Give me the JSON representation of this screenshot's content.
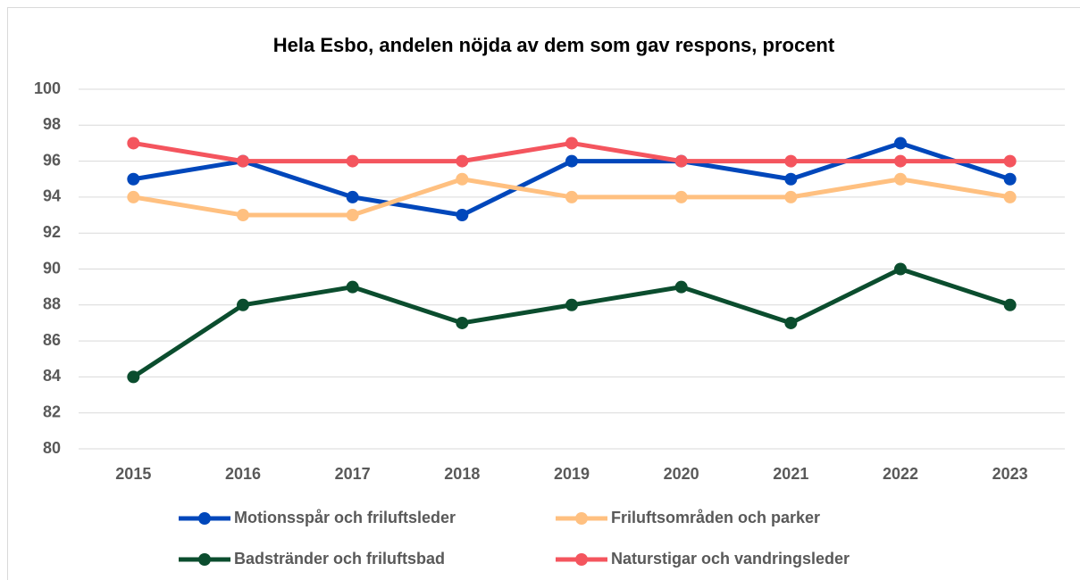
{
  "chart_data": {
    "type": "line",
    "title": "Hela Esbo, andelen nöjda av dem som gav respons, procent",
    "categories": [
      "2015",
      "2016",
      "2017",
      "2018",
      "2019",
      "2020",
      "2021",
      "2022",
      "2023"
    ],
    "series": [
      {
        "name": "Motionsspår och friluftsleder",
        "color": "#0047bb",
        "values": [
          95,
          96,
          94,
          93,
          96,
          96,
          95,
          97,
          95
        ]
      },
      {
        "name": "Friluftsområden och parker",
        "color": "#ffc080",
        "values": [
          94,
          93,
          93,
          95,
          94,
          94,
          94,
          95,
          94
        ]
      },
      {
        "name": "Badstränder och friluftsbad",
        "color": "#0b4d2e",
        "values": [
          84,
          88,
          89,
          87,
          88,
          89,
          87,
          90,
          88
        ]
      },
      {
        "name": "Naturstigar och vandringsleder",
        "color": "#f4555e",
        "values": [
          97,
          96,
          96,
          96,
          97,
          96,
          96,
          96,
          96
        ]
      }
    ],
    "ylim": [
      80,
      100
    ],
    "yticks": [
      80,
      82,
      84,
      86,
      88,
      90,
      92,
      94,
      96,
      98,
      100
    ],
    "grid": true,
    "legend": "bottom"
  }
}
